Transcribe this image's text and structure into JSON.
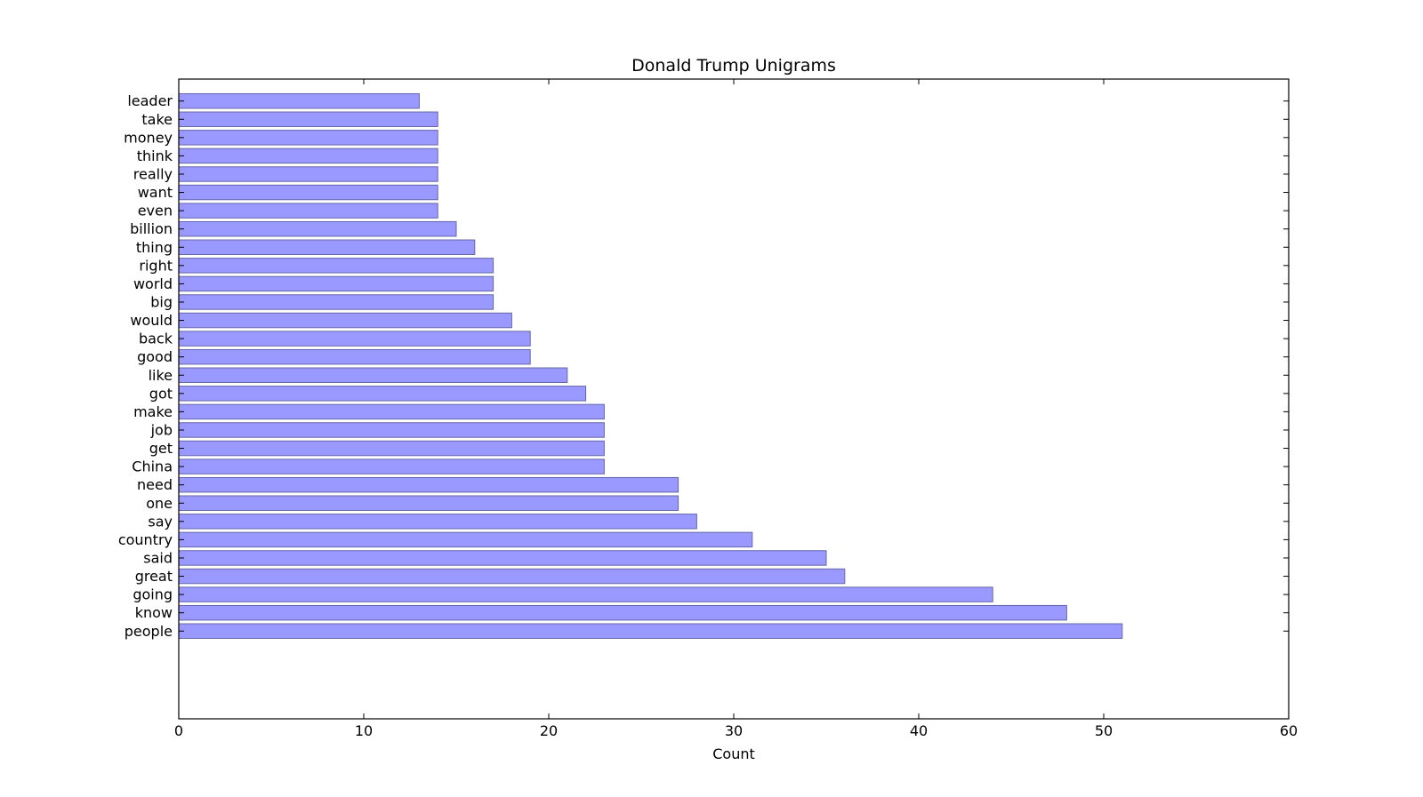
{
  "chart_data": {
    "type": "bar",
    "orientation": "horizontal",
    "title": "Donald Trump Unigrams",
    "xlabel": "Count",
    "ylabel": "",
    "xlim": [
      0,
      60
    ],
    "xticks": [
      0,
      10,
      20,
      30,
      40,
      50,
      60
    ],
    "grid": false,
    "categories": [
      "people",
      "know",
      "going",
      "great",
      "said",
      "country",
      "say",
      "one",
      "need",
      "China",
      "get",
      "job",
      "make",
      "got",
      "like",
      "good",
      "back",
      "would",
      "big",
      "world",
      "right",
      "thing",
      "billion",
      "even",
      "want",
      "really",
      "think",
      "money",
      "take",
      "leader"
    ],
    "values": [
      51,
      48,
      44,
      36,
      35,
      31,
      28,
      27,
      27,
      23,
      23,
      23,
      23,
      22,
      21,
      19,
      19,
      18,
      17,
      17,
      17,
      16,
      15,
      14,
      14,
      14,
      14,
      14,
      14,
      13
    ],
    "bar_color": "#9999ff",
    "bar_edge_color": "#6666aa"
  }
}
